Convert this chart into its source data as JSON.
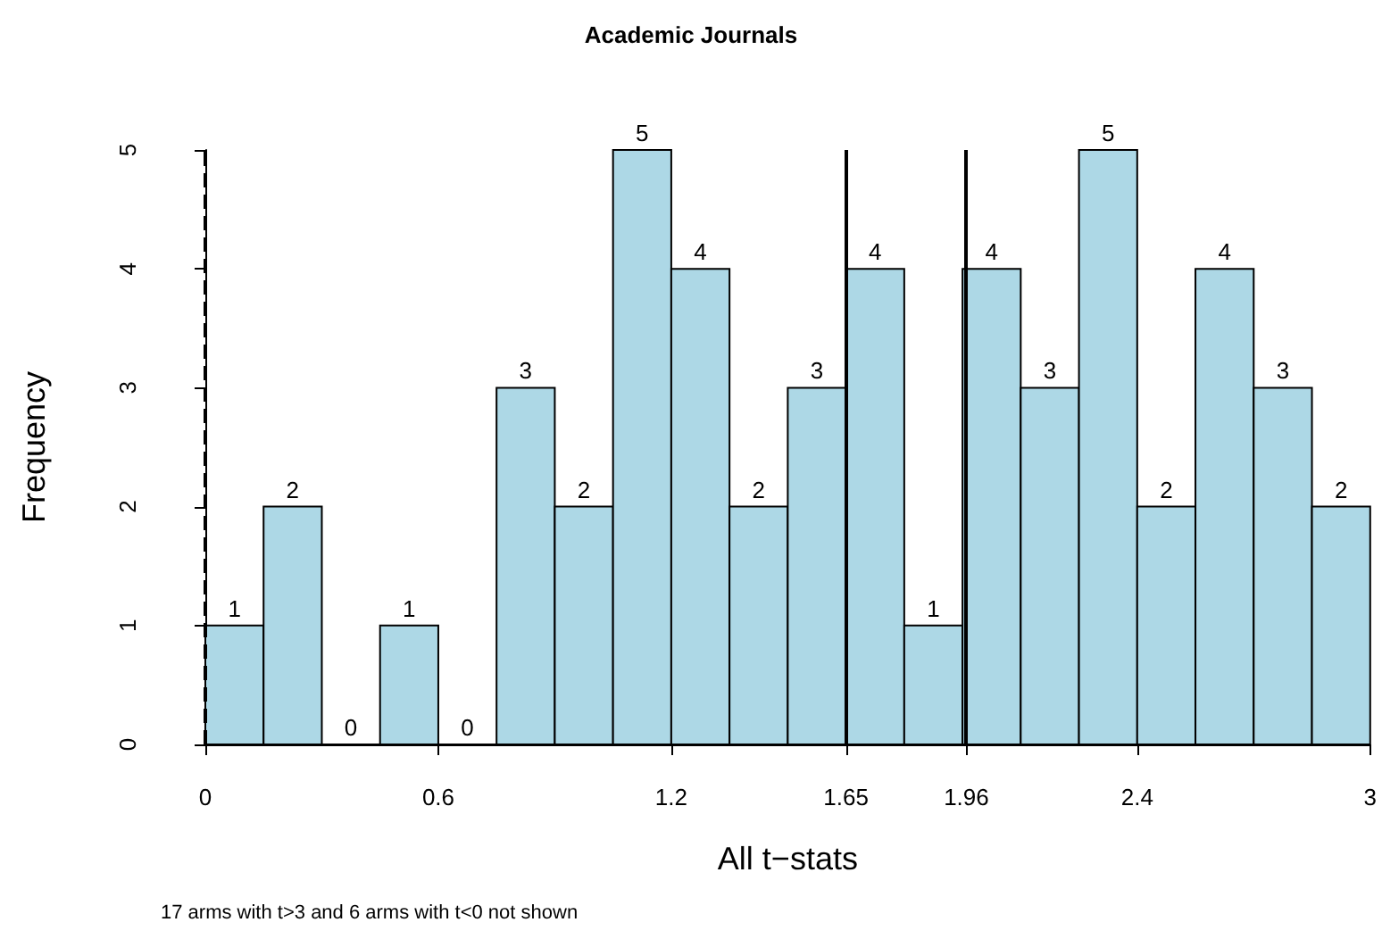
{
  "chart_data": {
    "type": "histogram",
    "title": "Academic Journals",
    "xlabel": "All t−stats",
    "ylabel": "Frequency",
    "bins": [
      0,
      0.15,
      0.3,
      0.45,
      0.6,
      0.75,
      0.9,
      1.05,
      1.2,
      1.35,
      1.5,
      1.65,
      1.8,
      1.95,
      2.1,
      2.25,
      2.4,
      2.55,
      2.7,
      2.85,
      3
    ],
    "values": [
      1,
      2,
      0,
      1,
      0,
      3,
      2,
      5,
      4,
      2,
      3,
      4,
      1,
      4,
      3,
      5,
      2,
      4,
      3,
      2
    ],
    "color": "#add8e6",
    "data_labels": true,
    "xlim": [
      0,
      3
    ],
    "xticks": [
      0,
      0.6,
      1.2,
      1.65,
      1.96,
      2.4,
      3
    ],
    "ylim": [
      0,
      5
    ],
    "yticks": [
      0,
      1,
      2,
      3,
      4,
      5
    ],
    "ref_lines": [
      {
        "axis": "x",
        "value": 0,
        "line_style": "dashed"
      },
      {
        "axis": "x",
        "value": 1.65,
        "line_style": "solid"
      },
      {
        "axis": "x",
        "value": 1.96,
        "line_style": "solid"
      }
    ],
    "annotations": [
      "17 arms with t>3 and 6 arms with t<0 not shown"
    ]
  }
}
